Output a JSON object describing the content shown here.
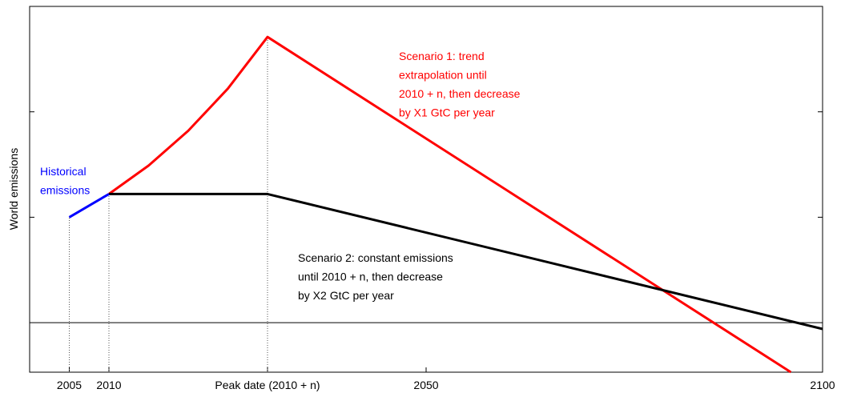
{
  "chart_data": {
    "type": "line",
    "y_label": "World emissions",
    "xlim": [
      2000,
      2100
    ],
    "ylim": [
      -0.47,
      3
    ],
    "xticks": [
      2005,
      2010,
      {
        "value": 2030,
        "label": "Peak date (2010 + n)"
      },
      2050,
      2100
    ],
    "yticks": [
      0,
      1,
      2
    ],
    "series": [
      {
        "color": "#0000ff",
        "x": [
          2005,
          2010
        ],
        "values": [
          1.0,
          1.22
        ]
      },
      {
        "color": "#ff0000",
        "x": [
          2010,
          2015,
          2020,
          2025,
          2030,
          2096
        ],
        "values": [
          1.22,
          1.49,
          1.82,
          2.22,
          2.71,
          -0.47
        ]
      },
      {
        "color": "#000000",
        "x": [
          2010,
          2030,
          2100
        ],
        "values": [
          1.22,
          1.22,
          -0.06
        ]
      }
    ],
    "annotations": [
      {
        "color": "#0000ff",
        "lines": [
          "Historical",
          "emissions"
        ]
      },
      {
        "color": "#ff0000",
        "lines": [
          "Scenario 1: trend",
          "extrapolation until",
          "2010 + n, then decrease",
          "by X1 GtC per year"
        ]
      },
      {
        "color": "#000000",
        "lines": [
          "Scenario 2: constant emissions",
          "until 2010 + n, then decrease",
          "by X2 GtC per year"
        ]
      }
    ]
  }
}
